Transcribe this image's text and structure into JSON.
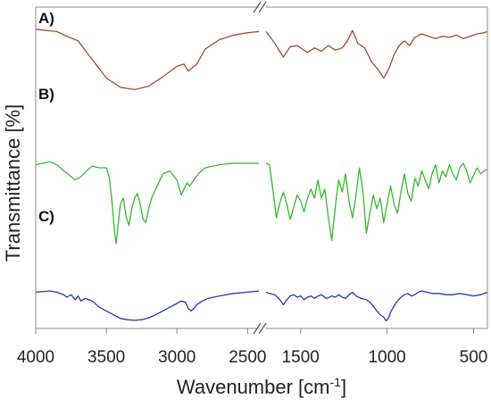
{
  "chart_data": {
    "type": "line",
    "xlabel": "Wavenumber [cm",
    "xlabel_sup": "-1",
    "xlabel_close": "]",
    "ylabel": "Transmittance [%]",
    "x_axis": {
      "reversed": true,
      "break_between": [
        2420,
        1700
      ],
      "left_segment_range": [
        4000,
        2420
      ],
      "right_segment_range": [
        1700,
        420
      ],
      "ticks_left": [
        4000,
        3500,
        3000,
        2500
      ],
      "ticks_right": [
        1500,
        1000,
        500
      ],
      "tick_labels": [
        "4000",
        "3500",
        "3000",
        "2500",
        "1500",
        "1000",
        "500"
      ]
    },
    "y_axis": {
      "range": [
        -0.05,
        1.05
      ],
      "tick_labels_shown": false
    },
    "grid": false,
    "legend": "none",
    "series": [
      {
        "label": "A)",
        "color": "#a64b2a",
        "points": [
          [
            4000,
            0.94
          ],
          [
            3850,
            0.92
          ],
          [
            3780,
            0.88
          ],
          [
            3700,
            0.84
          ],
          [
            3600,
            0.68
          ],
          [
            3500,
            0.52
          ],
          [
            3400,
            0.44
          ],
          [
            3300,
            0.42
          ],
          [
            3200,
            0.45
          ],
          [
            3100,
            0.53
          ],
          [
            3000,
            0.62
          ],
          [
            2950,
            0.64
          ],
          [
            2920,
            0.58
          ],
          [
            2860,
            0.64
          ],
          [
            2800,
            0.77
          ],
          [
            2700,
            0.85
          ],
          [
            2600,
            0.89
          ],
          [
            2500,
            0.91
          ],
          [
            2420,
            0.92
          ],
          [
            1700,
            0.92
          ],
          [
            1650,
            0.82
          ],
          [
            1600,
            0.7
          ],
          [
            1560,
            0.79
          ],
          [
            1520,
            0.8
          ],
          [
            1460,
            0.74
          ],
          [
            1420,
            0.78
          ],
          [
            1380,
            0.75
          ],
          [
            1340,
            0.8
          ],
          [
            1300,
            0.76
          ],
          [
            1260,
            0.78
          ],
          [
            1230,
            0.84
          ],
          [
            1200,
            0.93
          ],
          [
            1170,
            0.82
          ],
          [
            1130,
            0.78
          ],
          [
            1090,
            0.66
          ],
          [
            1050,
            0.59
          ],
          [
            1020,
            0.52
          ],
          [
            990,
            0.6
          ],
          [
            960,
            0.72
          ],
          [
            930,
            0.8
          ],
          [
            900,
            0.84
          ],
          [
            870,
            0.8
          ],
          [
            840,
            0.87
          ],
          [
            800,
            0.9
          ],
          [
            760,
            0.88
          ],
          [
            720,
            0.86
          ],
          [
            680,
            0.88
          ],
          [
            640,
            0.87
          ],
          [
            600,
            0.89
          ],
          [
            560,
            0.86
          ],
          [
            520,
            0.88
          ],
          [
            480,
            0.9
          ],
          [
            440,
            0.91
          ],
          [
            420,
            0.92
          ]
        ]
      },
      {
        "label": "B)",
        "color": "#35b92b",
        "points": [
          [
            4000,
            0.62
          ],
          [
            3900,
            0.64
          ],
          [
            3850,
            0.62
          ],
          [
            3800,
            0.58
          ],
          [
            3760,
            0.55
          ],
          [
            3720,
            0.52
          ],
          [
            3680,
            0.54
          ],
          [
            3640,
            0.58
          ],
          [
            3600,
            0.61
          ],
          [
            3550,
            0.6
          ],
          [
            3500,
            0.6
          ],
          [
            3480,
            0.54
          ],
          [
            3460,
            0.38
          ],
          [
            3440,
            0.16
          ],
          [
            3430,
            0.1
          ],
          [
            3420,
            0.2
          ],
          [
            3400,
            0.36
          ],
          [
            3380,
            0.4
          ],
          [
            3360,
            0.28
          ],
          [
            3340,
            0.22
          ],
          [
            3320,
            0.33
          ],
          [
            3300,
            0.4
          ],
          [
            3280,
            0.43
          ],
          [
            3260,
            0.36
          ],
          [
            3240,
            0.26
          ],
          [
            3220,
            0.24
          ],
          [
            3200,
            0.33
          ],
          [
            3180,
            0.4
          ],
          [
            3150,
            0.46
          ],
          [
            3100,
            0.56
          ],
          [
            3050,
            0.58
          ],
          [
            3000,
            0.52
          ],
          [
            2970,
            0.42
          ],
          [
            2950,
            0.46
          ],
          [
            2930,
            0.5
          ],
          [
            2910,
            0.48
          ],
          [
            2880,
            0.52
          ],
          [
            2850,
            0.56
          ],
          [
            2800,
            0.6
          ],
          [
            2750,
            0.61
          ],
          [
            2700,
            0.62
          ],
          [
            2600,
            0.63
          ],
          [
            2500,
            0.63
          ],
          [
            2420,
            0.63
          ],
          [
            1700,
            0.63
          ],
          [
            1680,
            0.62
          ],
          [
            1660,
            0.45
          ],
          [
            1640,
            0.27
          ],
          [
            1620,
            0.37
          ],
          [
            1600,
            0.44
          ],
          [
            1580,
            0.36
          ],
          [
            1560,
            0.26
          ],
          [
            1540,
            0.34
          ],
          [
            1520,
            0.42
          ],
          [
            1500,
            0.38
          ],
          [
            1480,
            0.31
          ],
          [
            1460,
            0.4
          ],
          [
            1440,
            0.46
          ],
          [
            1420,
            0.4
          ],
          [
            1400,
            0.52
          ],
          [
            1380,
            0.4
          ],
          [
            1360,
            0.46
          ],
          [
            1340,
            0.27
          ],
          [
            1320,
            0.12
          ],
          [
            1300,
            0.34
          ],
          [
            1280,
            0.52
          ],
          [
            1260,
            0.44
          ],
          [
            1240,
            0.56
          ],
          [
            1220,
            0.38
          ],
          [
            1200,
            0.27
          ],
          [
            1180,
            0.42
          ],
          [
            1160,
            0.6
          ],
          [
            1140,
            0.45
          ],
          [
            1120,
            0.17
          ],
          [
            1100,
            0.3
          ],
          [
            1080,
            0.42
          ],
          [
            1060,
            0.33
          ],
          [
            1040,
            0.4
          ],
          [
            1020,
            0.24
          ],
          [
            1000,
            0.36
          ],
          [
            980,
            0.48
          ],
          [
            960,
            0.36
          ],
          [
            940,
            0.3
          ],
          [
            920,
            0.44
          ],
          [
            900,
            0.56
          ],
          [
            880,
            0.43
          ],
          [
            860,
            0.38
          ],
          [
            840,
            0.53
          ],
          [
            820,
            0.48
          ],
          [
            800,
            0.58
          ],
          [
            780,
            0.52
          ],
          [
            760,
            0.46
          ],
          [
            740,
            0.56
          ],
          [
            720,
            0.62
          ],
          [
            700,
            0.5
          ],
          [
            680,
            0.58
          ],
          [
            660,
            0.54
          ],
          [
            640,
            0.62
          ],
          [
            620,
            0.56
          ],
          [
            600,
            0.52
          ],
          [
            580,
            0.6
          ],
          [
            560,
            0.63
          ],
          [
            540,
            0.58
          ],
          [
            520,
            0.5
          ],
          [
            500,
            0.55
          ],
          [
            480,
            0.6
          ],
          [
            460,
            0.56
          ],
          [
            440,
            0.58
          ],
          [
            420,
            0.59
          ]
        ]
      },
      {
        "label": "C)",
        "color": "#2e2ebd",
        "points": [
          [
            4000,
            0.29
          ],
          [
            3900,
            0.3
          ],
          [
            3850,
            0.29
          ],
          [
            3800,
            0.27
          ],
          [
            3780,
            0.25
          ],
          [
            3750,
            0.27
          ],
          [
            3720,
            0.23
          ],
          [
            3700,
            0.26
          ],
          [
            3680,
            0.22
          ],
          [
            3650,
            0.24
          ],
          [
            3600,
            0.22
          ],
          [
            3550,
            0.17
          ],
          [
            3500,
            0.14
          ],
          [
            3450,
            0.11
          ],
          [
            3400,
            0.08
          ],
          [
            3350,
            0.07
          ],
          [
            3300,
            0.065
          ],
          [
            3250,
            0.07
          ],
          [
            3200,
            0.085
          ],
          [
            3150,
            0.11
          ],
          [
            3100,
            0.14
          ],
          [
            3050,
            0.17
          ],
          [
            3000,
            0.2
          ],
          [
            2970,
            0.22
          ],
          [
            2940,
            0.21
          ],
          [
            2920,
            0.16
          ],
          [
            2900,
            0.14
          ],
          [
            2880,
            0.16
          ],
          [
            2860,
            0.19
          ],
          [
            2820,
            0.22
          ],
          [
            2780,
            0.24
          ],
          [
            2700,
            0.26
          ],
          [
            2600,
            0.28
          ],
          [
            2500,
            0.29
          ],
          [
            2420,
            0.3
          ],
          [
            1700,
            0.29
          ],
          [
            1680,
            0.28
          ],
          [
            1650,
            0.27
          ],
          [
            1620,
            0.23
          ],
          [
            1600,
            0.19
          ],
          [
            1580,
            0.23
          ],
          [
            1560,
            0.26
          ],
          [
            1540,
            0.27
          ],
          [
            1520,
            0.25
          ],
          [
            1500,
            0.26
          ],
          [
            1480,
            0.23
          ],
          [
            1460,
            0.25
          ],
          [
            1440,
            0.26
          ],
          [
            1420,
            0.24
          ],
          [
            1400,
            0.26
          ],
          [
            1380,
            0.27
          ],
          [
            1350,
            0.24
          ],
          [
            1320,
            0.26
          ],
          [
            1300,
            0.25
          ],
          [
            1280,
            0.27
          ],
          [
            1260,
            0.25
          ],
          [
            1240,
            0.24
          ],
          [
            1220,
            0.27
          ],
          [
            1200,
            0.29
          ],
          [
            1180,
            0.26
          ],
          [
            1150,
            0.24
          ],
          [
            1120,
            0.23
          ],
          [
            1100,
            0.21
          ],
          [
            1080,
            0.18
          ],
          [
            1060,
            0.14
          ],
          [
            1040,
            0.11
          ],
          [
            1020,
            0.09
          ],
          [
            1005,
            0.06
          ],
          [
            990,
            0.09
          ],
          [
            980,
            0.13
          ],
          [
            960,
            0.18
          ],
          [
            940,
            0.22
          ],
          [
            920,
            0.25
          ],
          [
            900,
            0.27
          ],
          [
            880,
            0.28
          ],
          [
            860,
            0.26
          ],
          [
            840,
            0.27
          ],
          [
            820,
            0.29
          ],
          [
            800,
            0.3
          ],
          [
            770,
            0.29
          ],
          [
            740,
            0.28
          ],
          [
            700,
            0.28
          ],
          [
            660,
            0.27
          ],
          [
            620,
            0.27
          ],
          [
            580,
            0.28
          ],
          [
            540,
            0.27
          ],
          [
            500,
            0.26
          ],
          [
            460,
            0.27
          ],
          [
            420,
            0.29
          ]
        ]
      }
    ]
  }
}
